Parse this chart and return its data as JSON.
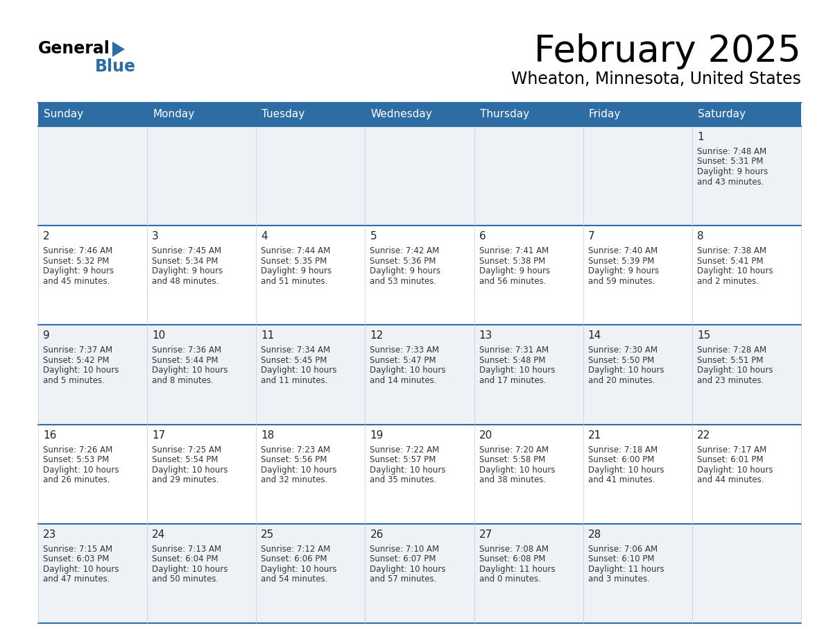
{
  "title": "February 2025",
  "subtitle": "Wheaton, Minnesota, United States",
  "header_bg_color": "#2e6da4",
  "header_text_color": "#ffffff",
  "row_bg_colors": [
    "#eef2f7",
    "#ffffff"
  ],
  "grid_line_color": "#2e6da4",
  "thin_line_color": "#c0c8d8",
  "day_headers": [
    "Sunday",
    "Monday",
    "Tuesday",
    "Wednesday",
    "Thursday",
    "Friday",
    "Saturday"
  ],
  "days": [
    {
      "day": 1,
      "col": 6,
      "row": 0,
      "sunrise": "7:48 AM",
      "sunset": "5:31 PM",
      "daylight": "9 hours and 43 minutes"
    },
    {
      "day": 2,
      "col": 0,
      "row": 1,
      "sunrise": "7:46 AM",
      "sunset": "5:32 PM",
      "daylight": "9 hours and 45 minutes"
    },
    {
      "day": 3,
      "col": 1,
      "row": 1,
      "sunrise": "7:45 AM",
      "sunset": "5:34 PM",
      "daylight": "9 hours and 48 minutes"
    },
    {
      "day": 4,
      "col": 2,
      "row": 1,
      "sunrise": "7:44 AM",
      "sunset": "5:35 PM",
      "daylight": "9 hours and 51 minutes"
    },
    {
      "day": 5,
      "col": 3,
      "row": 1,
      "sunrise": "7:42 AM",
      "sunset": "5:36 PM",
      "daylight": "9 hours and 53 minutes"
    },
    {
      "day": 6,
      "col": 4,
      "row": 1,
      "sunrise": "7:41 AM",
      "sunset": "5:38 PM",
      "daylight": "9 hours and 56 minutes"
    },
    {
      "day": 7,
      "col": 5,
      "row": 1,
      "sunrise": "7:40 AM",
      "sunset": "5:39 PM",
      "daylight": "9 hours and 59 minutes"
    },
    {
      "day": 8,
      "col": 6,
      "row": 1,
      "sunrise": "7:38 AM",
      "sunset": "5:41 PM",
      "daylight": "10 hours and 2 minutes"
    },
    {
      "day": 9,
      "col": 0,
      "row": 2,
      "sunrise": "7:37 AM",
      "sunset": "5:42 PM",
      "daylight": "10 hours and 5 minutes"
    },
    {
      "day": 10,
      "col": 1,
      "row": 2,
      "sunrise": "7:36 AM",
      "sunset": "5:44 PM",
      "daylight": "10 hours and 8 minutes"
    },
    {
      "day": 11,
      "col": 2,
      "row": 2,
      "sunrise": "7:34 AM",
      "sunset": "5:45 PM",
      "daylight": "10 hours and 11 minutes"
    },
    {
      "day": 12,
      "col": 3,
      "row": 2,
      "sunrise": "7:33 AM",
      "sunset": "5:47 PM",
      "daylight": "10 hours and 14 minutes"
    },
    {
      "day": 13,
      "col": 4,
      "row": 2,
      "sunrise": "7:31 AM",
      "sunset": "5:48 PM",
      "daylight": "10 hours and 17 minutes"
    },
    {
      "day": 14,
      "col": 5,
      "row": 2,
      "sunrise": "7:30 AM",
      "sunset": "5:50 PM",
      "daylight": "10 hours and 20 minutes"
    },
    {
      "day": 15,
      "col": 6,
      "row": 2,
      "sunrise": "7:28 AM",
      "sunset": "5:51 PM",
      "daylight": "10 hours and 23 minutes"
    },
    {
      "day": 16,
      "col": 0,
      "row": 3,
      "sunrise": "7:26 AM",
      "sunset": "5:53 PM",
      "daylight": "10 hours and 26 minutes"
    },
    {
      "day": 17,
      "col": 1,
      "row": 3,
      "sunrise": "7:25 AM",
      "sunset": "5:54 PM",
      "daylight": "10 hours and 29 minutes"
    },
    {
      "day": 18,
      "col": 2,
      "row": 3,
      "sunrise": "7:23 AM",
      "sunset": "5:56 PM",
      "daylight": "10 hours and 32 minutes"
    },
    {
      "day": 19,
      "col": 3,
      "row": 3,
      "sunrise": "7:22 AM",
      "sunset": "5:57 PM",
      "daylight": "10 hours and 35 minutes"
    },
    {
      "day": 20,
      "col": 4,
      "row": 3,
      "sunrise": "7:20 AM",
      "sunset": "5:58 PM",
      "daylight": "10 hours and 38 minutes"
    },
    {
      "day": 21,
      "col": 5,
      "row": 3,
      "sunrise": "7:18 AM",
      "sunset": "6:00 PM",
      "daylight": "10 hours and 41 minutes"
    },
    {
      "day": 22,
      "col": 6,
      "row": 3,
      "sunrise": "7:17 AM",
      "sunset": "6:01 PM",
      "daylight": "10 hours and 44 minutes"
    },
    {
      "day": 23,
      "col": 0,
      "row": 4,
      "sunrise": "7:15 AM",
      "sunset": "6:03 PM",
      "daylight": "10 hours and 47 minutes"
    },
    {
      "day": 24,
      "col": 1,
      "row": 4,
      "sunrise": "7:13 AM",
      "sunset": "6:04 PM",
      "daylight": "10 hours and 50 minutes"
    },
    {
      "day": 25,
      "col": 2,
      "row": 4,
      "sunrise": "7:12 AM",
      "sunset": "6:06 PM",
      "daylight": "10 hours and 54 minutes"
    },
    {
      "day": 26,
      "col": 3,
      "row": 4,
      "sunrise": "7:10 AM",
      "sunset": "6:07 PM",
      "daylight": "10 hours and 57 minutes"
    },
    {
      "day": 27,
      "col": 4,
      "row": 4,
      "sunrise": "7:08 AM",
      "sunset": "6:08 PM",
      "daylight": "11 hours and 0 minutes"
    },
    {
      "day": 28,
      "col": 5,
      "row": 4,
      "sunrise": "7:06 AM",
      "sunset": "6:10 PM",
      "daylight": "11 hours and 3 minutes"
    }
  ],
  "num_rows": 5,
  "num_cols": 7,
  "logo_triangle_color": "#2e6da4",
  "logo_blue_color": "#2e6da4",
  "text_color": "#222222",
  "day_number_color": "#222222",
  "info_text_color": "#333333"
}
